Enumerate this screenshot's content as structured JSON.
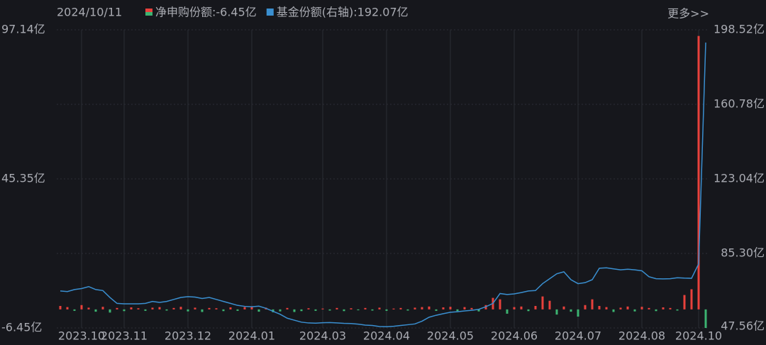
{
  "chart_data": {
    "type": "bar-line",
    "date": "2024/10/11",
    "more": "更多>>",
    "categories": [
      null,
      null,
      null,
      "2023.10",
      null,
      null,
      null,
      null,
      null,
      "2023.11",
      null,
      null,
      null,
      null,
      null,
      null,
      null,
      null,
      "2023.12",
      null,
      null,
      null,
      null,
      null,
      null,
      null,
      null,
      "2024.01",
      null,
      null,
      null,
      null,
      null,
      null,
      null,
      null,
      null,
      "2024.03",
      null,
      null,
      null,
      null,
      null,
      null,
      null,
      null,
      "2024.04",
      null,
      null,
      null,
      null,
      null,
      null,
      null,
      null,
      "2024.05",
      null,
      null,
      null,
      null,
      null,
      null,
      null,
      null,
      "2024.06",
      null,
      null,
      null,
      null,
      null,
      null,
      null,
      null,
      "2024.07",
      null,
      null,
      null,
      null,
      null,
      null,
      null,
      null,
      "2024.08",
      null,
      null,
      null,
      null,
      null,
      null,
      null,
      "2024.10",
      null
    ],
    "series": [
      {
        "name": "净申购份额:-6.45亿",
        "type": "bar",
        "color": "#e8413c",
        "down_color": "#3cb371",
        "values": [
          1.2,
          0.8,
          -0.5,
          1.5,
          0.6,
          -0.8,
          0.9,
          -1.1,
          0.5,
          -0.6,
          0.7,
          0.4,
          -0.5,
          0.6,
          0.8,
          -0.4,
          0.5,
          0.9,
          -0.7,
          0.6,
          -0.9,
          0.5,
          0.4,
          -0.6,
          0.7,
          -0.5,
          0.8,
          1.0,
          -0.8,
          0.6,
          -1.0,
          -0.7,
          0.5,
          -0.9,
          -0.6,
          0.4,
          -0.5,
          0.3,
          -0.4,
          0.5,
          -0.6,
          0.4,
          -0.3,
          0.5,
          -0.4,
          0.6,
          -0.5,
          0.3,
          0.5,
          -0.4,
          0.6,
          0.8,
          1.0,
          -0.5,
          0.7,
          0.9,
          -0.6,
          0.8,
          0.5,
          -0.7,
          1.5,
          4.0,
          3.5,
          -1.5,
          0.8,
          1.0,
          -0.6,
          1.2,
          4.5,
          3.0,
          -1.8,
          1.0,
          -0.8,
          -2.5,
          1.5,
          3.5,
          1.2,
          0.8,
          -0.9,
          0.6,
          1.0,
          -0.7,
          0.9,
          0.5,
          -0.6,
          0.7,
          0.5,
          -0.4,
          5.0,
          7.0,
          95.0,
          -6.45
        ]
      },
      {
        "name": "基金份额(右轴):192.07亿",
        "type": "line",
        "axis": "y2",
        "color": "#3a8fd0",
        "values": [
          66.3,
          66,
          67,
          67.5,
          68.5,
          67,
          66.5,
          63,
          60,
          59.8,
          59.8,
          59.8,
          60,
          61,
          60.5,
          61,
          62,
          63,
          63.4,
          63.2,
          62.5,
          63,
          62,
          61,
          60,
          59,
          58.5,
          58.3,
          58.6,
          57.5,
          56,
          54.5,
          52.5,
          51.5,
          50.5,
          50.1,
          50,
          50.2,
          50.3,
          50.1,
          49.9,
          49.8,
          49.5,
          49,
          48.8,
          48.3,
          48.2,
          48.4,
          48.8,
          49.2,
          49.6,
          51,
          53,
          54,
          54.8,
          55.5,
          55.8,
          56.2,
          56.5,
          57,
          58.3,
          60,
          65,
          64.5,
          64.8,
          65.5,
          66.3,
          66.5,
          70,
          72.5,
          75,
          76,
          72,
          70,
          70.5,
          72,
          77.8,
          78,
          77.5,
          77,
          77.3,
          77,
          76.5,
          73.5,
          72.5,
          72.4,
          72.5,
          73,
          72.8,
          72.7,
          80,
          192.07
        ]
      }
    ],
    "ylim": [
      -6.45,
      97.14
    ],
    "yticks": [
      {
        "value": -6.45,
        "label": "-6.45亿"
      },
      {
        "value": 45.35,
        "label": "45.35亿"
      },
      {
        "value": 97.14,
        "label": "97.14亿"
      }
    ],
    "y2lim": [
      47.56,
      198.52
    ],
    "y2ticks": [
      {
        "value": 47.56,
        "label": "47.56亿"
      },
      {
        "value": 85.3,
        "label": "85.30亿"
      },
      {
        "value": 123.04,
        "label": "123.04亿"
      },
      {
        "value": 160.78,
        "label": "160.78亿"
      },
      {
        "value": 198.52,
        "label": "198.52亿"
      }
    ],
    "grid": true
  }
}
